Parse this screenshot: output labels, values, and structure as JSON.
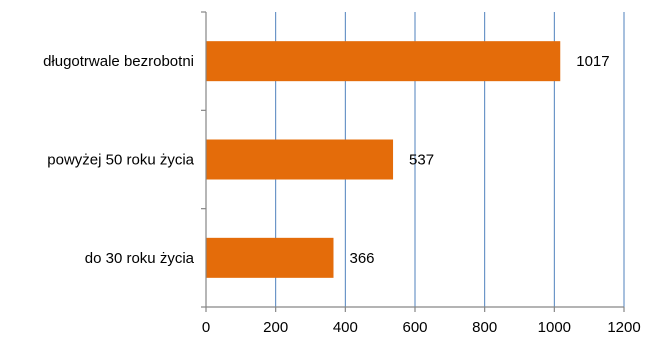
{
  "chart_data": {
    "type": "bar",
    "orientation": "horizontal",
    "categories": [
      "długotrwale bezrobotni",
      "powyżej 50 roku życia",
      "do 30 roku życia"
    ],
    "values": [
      1017,
      537,
      366
    ],
    "xlim": [
      0,
      1200
    ],
    "xticks": [
      "0",
      "200",
      "400",
      "600",
      "800",
      "1000",
      "1200"
    ],
    "grid": "vertical",
    "legend": "none",
    "bar_color": "#e46c0a",
    "grid_color": "#4f81bd",
    "axis_color": "#868686"
  }
}
